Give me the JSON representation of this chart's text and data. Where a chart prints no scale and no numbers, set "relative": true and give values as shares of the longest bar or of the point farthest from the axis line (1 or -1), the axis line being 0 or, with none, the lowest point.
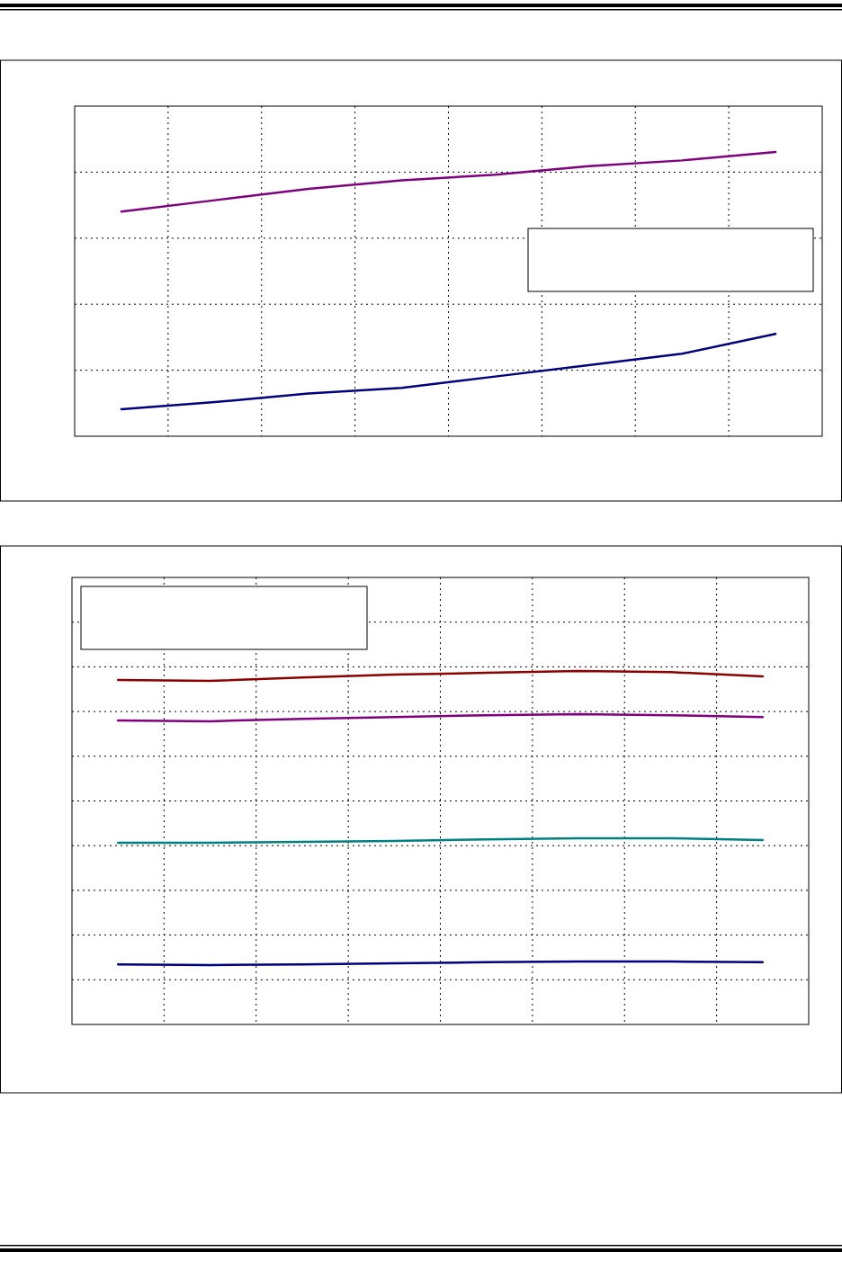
{
  "chart_data": [
    {
      "type": "line",
      "relative": true,
      "categories": [
        null,
        null,
        null,
        null,
        null,
        null,
        null,
        null
      ],
      "grid": true,
      "series": [
        {
          "color": "#800080",
          "values": [
            0.79,
            0.83,
            0.87,
            0.9,
            0.92,
            0.95,
            0.97,
            1
          ]
        },
        {
          "color": "#000080",
          "values": [
            0.095,
            0.12,
            0.15,
            0.17,
            0.21,
            0.25,
            0.29,
            0.36
          ]
        }
      ]
    },
    {
      "type": "line",
      "relative": true,
      "categories": [
        null,
        null,
        null,
        null,
        null,
        null,
        null,
        null
      ],
      "grid": true,
      "series": [
        {
          "color": "#8b0000",
          "values": [
            0.975,
            0.972,
            0.982,
            0.99,
            0.995,
            1,
            0.997,
            0.985
          ]
        },
        {
          "color": "#800080",
          "values": [
            0.86,
            0.858,
            0.865,
            0.87,
            0.875,
            0.878,
            0.875,
            0.87
          ]
        },
        {
          "color": "#008080",
          "values": [
            0.514,
            0.514,
            0.517,
            0.519,
            0.524,
            0.527,
            0.527,
            0.522
          ]
        },
        {
          "color": "#000080",
          "values": [
            0.17,
            0.168,
            0.17,
            0.173,
            0.176,
            0.178,
            0.178,
            0.176
          ]
        }
      ]
    }
  ]
}
